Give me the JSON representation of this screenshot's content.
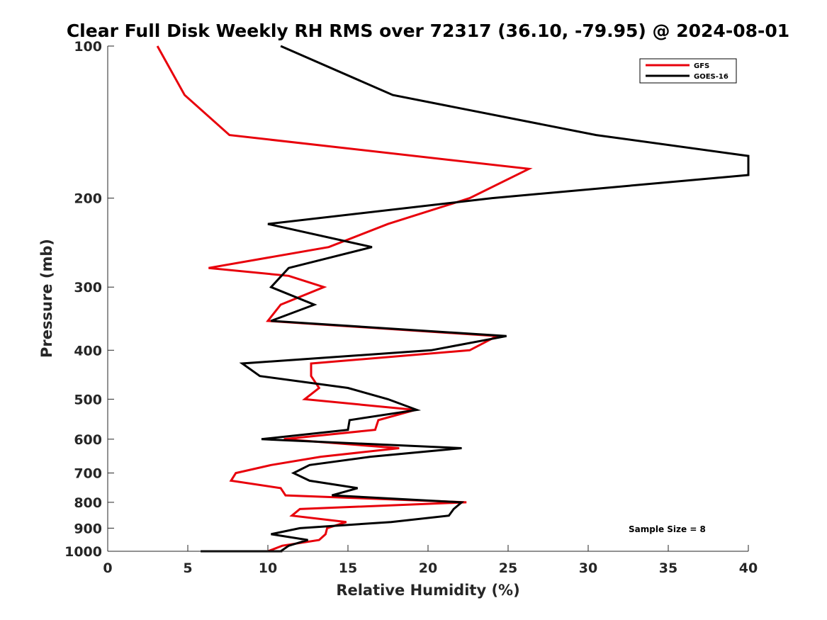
{
  "chart_data": {
    "type": "line",
    "title": "Clear Full Disk Weekly RH RMS over 72317 (36.10, -79.95) @ 2024-08-01",
    "xlabel": "Relative Humidity (%)",
    "ylabel": "Pressure (mb)",
    "xlim": [
      0,
      40
    ],
    "ylim": [
      100,
      1000
    ],
    "yscale": "log",
    "yreverse": true,
    "xticks": [
      0,
      5,
      10,
      15,
      20,
      25,
      30,
      35,
      40
    ],
    "yticks": [
      100,
      200,
      300,
      400,
      500,
      600,
      700,
      800,
      900,
      1000
    ],
    "grid": false,
    "legend_position": "top-right",
    "annotation": "Sample Size = 8",
    "series": [
      {
        "name": "GFS",
        "color": "#e8000b",
        "points": [
          [
            3.1,
            100
          ],
          [
            4.8,
            125
          ],
          [
            7.6,
            150
          ],
          [
            26.3,
            175
          ],
          [
            22.6,
            200
          ],
          [
            17.5,
            225
          ],
          [
            13.8,
            250
          ],
          [
            6.3,
            275
          ],
          [
            11.3,
            285
          ],
          [
            13.5,
            300
          ],
          [
            10.8,
            325
          ],
          [
            10.0,
            350
          ],
          [
            24.3,
            375
          ],
          [
            22.6,
            400
          ],
          [
            12.7,
            425
          ],
          [
            12.7,
            450
          ],
          [
            13.2,
            475
          ],
          [
            12.3,
            500
          ],
          [
            19.2,
            525
          ],
          [
            16.9,
            550
          ],
          [
            16.7,
            575
          ],
          [
            11.0,
            600
          ],
          [
            18.2,
            625
          ],
          [
            13.3,
            650
          ],
          [
            10.2,
            675
          ],
          [
            8.0,
            700
          ],
          [
            7.7,
            725
          ],
          [
            10.8,
            750
          ],
          [
            11.1,
            775
          ],
          [
            22.4,
            800
          ],
          [
            12.0,
            825
          ],
          [
            11.5,
            850
          ],
          [
            14.9,
            875
          ],
          [
            13.7,
            900
          ],
          [
            13.6,
            925
          ],
          [
            13.2,
            950
          ],
          [
            10.9,
            975
          ],
          [
            10.0,
            1000
          ],
          [
            10.9,
            1010
          ]
        ]
      },
      {
        "name": "GOES-16",
        "color": "#000000",
        "points": [
          [
            10.8,
            100
          ],
          [
            17.8,
            125
          ],
          [
            30.5,
            150
          ],
          [
            40.0,
            165
          ],
          [
            40.0,
            180
          ],
          [
            24.0,
            200
          ],
          [
            10.0,
            225
          ],
          [
            16.5,
            250
          ],
          [
            11.3,
            275
          ],
          [
            10.2,
            300
          ],
          [
            12.9,
            325
          ],
          [
            10.2,
            350
          ],
          [
            24.9,
            375
          ],
          [
            20.2,
            400
          ],
          [
            8.4,
            425
          ],
          [
            9.5,
            450
          ],
          [
            15.0,
            475
          ],
          [
            17.5,
            500
          ],
          [
            19.3,
            525
          ],
          [
            15.1,
            550
          ],
          [
            15.0,
            575
          ],
          [
            9.6,
            600
          ],
          [
            22.1,
            625
          ],
          [
            16.4,
            650
          ],
          [
            12.6,
            675
          ],
          [
            11.6,
            700
          ],
          [
            12.6,
            725
          ],
          [
            15.6,
            750
          ],
          [
            14.0,
            775
          ],
          [
            22.1,
            800
          ],
          [
            21.6,
            825
          ],
          [
            21.3,
            850
          ],
          [
            17.7,
            875
          ],
          [
            12.0,
            900
          ],
          [
            10.2,
            925
          ],
          [
            12.5,
            950
          ],
          [
            11.3,
            975
          ],
          [
            10.8,
            1000
          ],
          [
            10.1,
            1010
          ],
          [
            5.8,
            1020
          ],
          [
            10.9,
            1030
          ]
        ]
      }
    ]
  }
}
